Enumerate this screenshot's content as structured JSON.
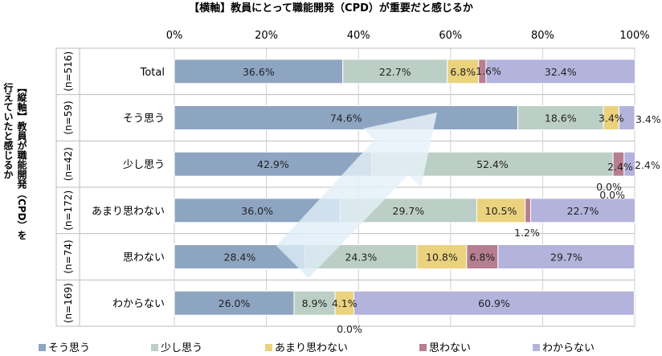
{
  "chart_data": {
    "type": "bar",
    "stacked": "percent",
    "orientation": "horizontal",
    "title": "【横軸】教員にとって職能開発（CPD）が重要だと感じるか",
    "ylabel_lines": [
      "【縦軸】教員が職能開発（CPD）を",
      "行えていたと感じるか"
    ],
    "xlim": [
      0,
      100
    ],
    "x_ticks": [
      0,
      20,
      40,
      60,
      80,
      100
    ],
    "x_tick_suffix": "%",
    "grid": true,
    "legend_position": "bottom",
    "categories": [
      "Total",
      "そう思う",
      "少し思う",
      "あまり思わない",
      "思わない",
      "わからない"
    ],
    "sample_sizes": [
      "(n=516)",
      "(n=59)",
      "(n=42)",
      "(n=172)",
      "(n=74)",
      "(n=169)"
    ],
    "series": [
      {
        "name": "そう思う",
        "color": "#8ea5c2",
        "values": [
          36.6,
          74.6,
          42.9,
          36.0,
          28.4,
          26.0
        ]
      },
      {
        "name": "少し思う",
        "color": "#bccfc6",
        "values": [
          22.7,
          18.6,
          52.4,
          29.7,
          24.3,
          8.9
        ]
      },
      {
        "name": "あまり思わない",
        "color": "#ead27e",
        "values": [
          6.8,
          3.4,
          0.0,
          10.5,
          10.8,
          4.1
        ]
      },
      {
        "name": "思わない",
        "color": "#b77e92",
        "values": [
          1.6,
          0.0,
          2.4,
          1.2,
          6.8,
          0.0
        ]
      },
      {
        "name": "わからない",
        "color": "#b3b3dc",
        "values": [
          32.4,
          3.4,
          2.4,
          22.7,
          29.7,
          60.9
        ]
      }
    ],
    "data_labels": [
      [
        "36.6%",
        "22.7%",
        "6.8%",
        "1.6%",
        "32.4%"
      ],
      [
        "74.6%",
        "18.6%",
        "3.4%",
        "0.0%",
        "3.4%"
      ],
      [
        "42.9%",
        "52.4%",
        "0.0%",
        "2.4%",
        "2.4%"
      ],
      [
        "36.0%",
        "29.7%",
        "10.5%",
        "1.2%",
        "22.7%"
      ],
      [
        "28.4%",
        "24.3%",
        "10.8%",
        "6.8%",
        "29.7%"
      ],
      [
        "26.0%",
        "8.9%",
        "4.1%",
        "0.0%",
        "60.9%"
      ]
    ]
  }
}
